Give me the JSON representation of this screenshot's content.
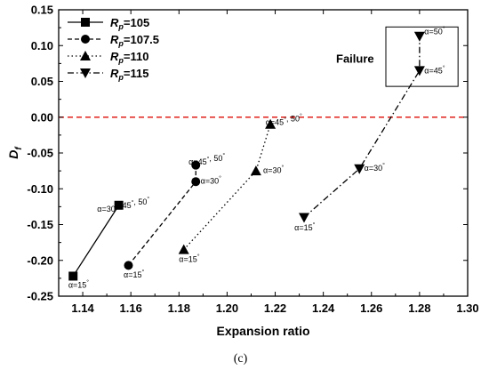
{
  "chart_data": {
    "type": "line",
    "xlabel": "Expansion ratio",
    "ylabel": "D",
    "ylabel_sub": "f",
    "xlim": [
      1.13,
      1.3
    ],
    "ylim": [
      -0.25,
      0.15
    ],
    "xticks": [
      "1.14",
      "1.16",
      "1.18",
      "1.20",
      "1.22",
      "1.24",
      "1.26",
      "1.28",
      "1.30"
    ],
    "xtick_values": [
      1.14,
      1.16,
      1.18,
      1.2,
      1.22,
      1.24,
      1.26,
      1.28,
      1.3
    ],
    "yticks": [
      "0.15",
      "0.10",
      "0.05",
      "0.00",
      "-0.05",
      "-0.10",
      "-0.15",
      "-0.20",
      "-0.25"
    ],
    "ytick_values": [
      0.15,
      0.1,
      0.05,
      0.0,
      -0.05,
      -0.1,
      -0.15,
      -0.2,
      -0.25
    ],
    "reference_line": {
      "y": 0.0,
      "color": "#e0201a",
      "style": "dashed"
    },
    "series": [
      {
        "name_prefix": "R",
        "name_sub": "p",
        "name_value": "=105",
        "marker": "square",
        "dash": "solid",
        "points": [
          {
            "x": 1.136,
            "y": -0.222
          },
          {
            "x": 1.155,
            "y": -0.123
          }
        ]
      },
      {
        "name_prefix": "R",
        "name_sub": "p",
        "name_value": "=107.5",
        "marker": "circle",
        "dash": "dashed",
        "points": [
          {
            "x": 1.159,
            "y": -0.207
          },
          {
            "x": 1.187,
            "y": -0.09
          },
          {
            "x": 1.187,
            "y": -0.067
          }
        ]
      },
      {
        "name_prefix": "R",
        "name_sub": "p",
        "name_value": "=110",
        "marker": "triangle-up",
        "dash": "dotted",
        "points": [
          {
            "x": 1.182,
            "y": -0.185
          },
          {
            "x": 1.212,
            "y": -0.075
          },
          {
            "x": 1.218,
            "y": -0.01
          }
        ]
      },
      {
        "name_prefix": "R",
        "name_sub": "p",
        "name_value": "=115",
        "marker": "triangle-down",
        "dash": "dashdot",
        "points": [
          {
            "x": 1.232,
            "y": -0.14
          },
          {
            "x": 1.255,
            "y": -0.072
          },
          {
            "x": 1.28,
            "y": 0.065
          },
          {
            "x": 1.28,
            "y": 0.113
          }
        ]
      }
    ],
    "annotations": [
      {
        "text": "α=15°",
        "x": 1.134,
        "y": -0.238
      },
      {
        "text": "α=30°, 45°, 50°",
        "x": 1.146,
        "y": -0.132
      },
      {
        "text": "α=15°",
        "x": 1.157,
        "y": -0.224
      },
      {
        "text": "α=30°",
        "x": 1.189,
        "y": -0.093
      },
      {
        "text": "α=45°, 50°",
        "x": 1.184,
        "y": -0.066
      },
      {
        "text": "α=15°",
        "x": 1.18,
        "y": -0.202
      },
      {
        "text": "α=30°",
        "x": 1.215,
        "y": -0.078
      },
      {
        "text": "α=45°, 50°",
        "x": 1.216,
        "y": -0.011
      },
      {
        "text": "α=15°",
        "x": 1.228,
        "y": -0.158
      },
      {
        "text": "α=30°",
        "x": 1.257,
        "y": -0.075
      },
      {
        "text": "α=45°",
        "x": 1.282,
        "y": 0.061
      },
      {
        "text": "α=50°",
        "x": 1.282,
        "y": 0.116
      }
    ],
    "failure_label": "Failure",
    "legend_position": "top-left",
    "grid": false
  },
  "caption": "(c)"
}
